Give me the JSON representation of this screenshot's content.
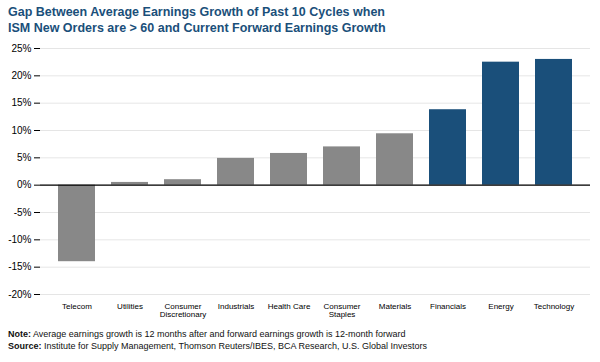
{
  "chart_data": {
    "type": "bar",
    "title": "Gap Between Average Earnings Growth of Past 10 Cycles when\nISM New Orders are > 60 and Current Forward Earnings Growth",
    "title_color": "#1a4f7a",
    "categories": [
      "Telecom",
      "Utilities",
      "Consumer\nDiscretionary",
      "Industrials",
      "Health Care",
      "Consumer\nStaples",
      "Materials",
      "Financials",
      "Energy",
      "Technology"
    ],
    "values": [
      -14.0,
      0.5,
      1.0,
      4.9,
      5.8,
      7.0,
      9.4,
      13.8,
      22.5,
      23.0
    ],
    "colors": [
      "#888888",
      "#888888",
      "#888888",
      "#888888",
      "#888888",
      "#888888",
      "#888888",
      "#1a4f7a",
      "#1a4f7a",
      "#1a4f7a"
    ],
    "ylim": [
      -20,
      25
    ],
    "yticks": [
      {
        "value": -20,
        "label": "-20%"
      },
      {
        "value": -15,
        "label": "-15%"
      },
      {
        "value": -10,
        "label": "-10%"
      },
      {
        "value": -5,
        "label": "-5%"
      },
      {
        "value": 0,
        "label": "0%"
      },
      {
        "value": 5,
        "label": "5%"
      },
      {
        "value": 10,
        "label": "10%"
      },
      {
        "value": 15,
        "label": "15%"
      },
      {
        "value": 20,
        "label": "20%"
      },
      {
        "value": 25,
        "label": "25%"
      }
    ],
    "grid": true,
    "annotations": [
      "Note: Average earnings growth is 12 months after and forward earnings growth is 12-month forward",
      "Source: Institute for Supply Management, Thomson Reuters/IBES, BCA Research, U.S. Global Investors"
    ]
  }
}
